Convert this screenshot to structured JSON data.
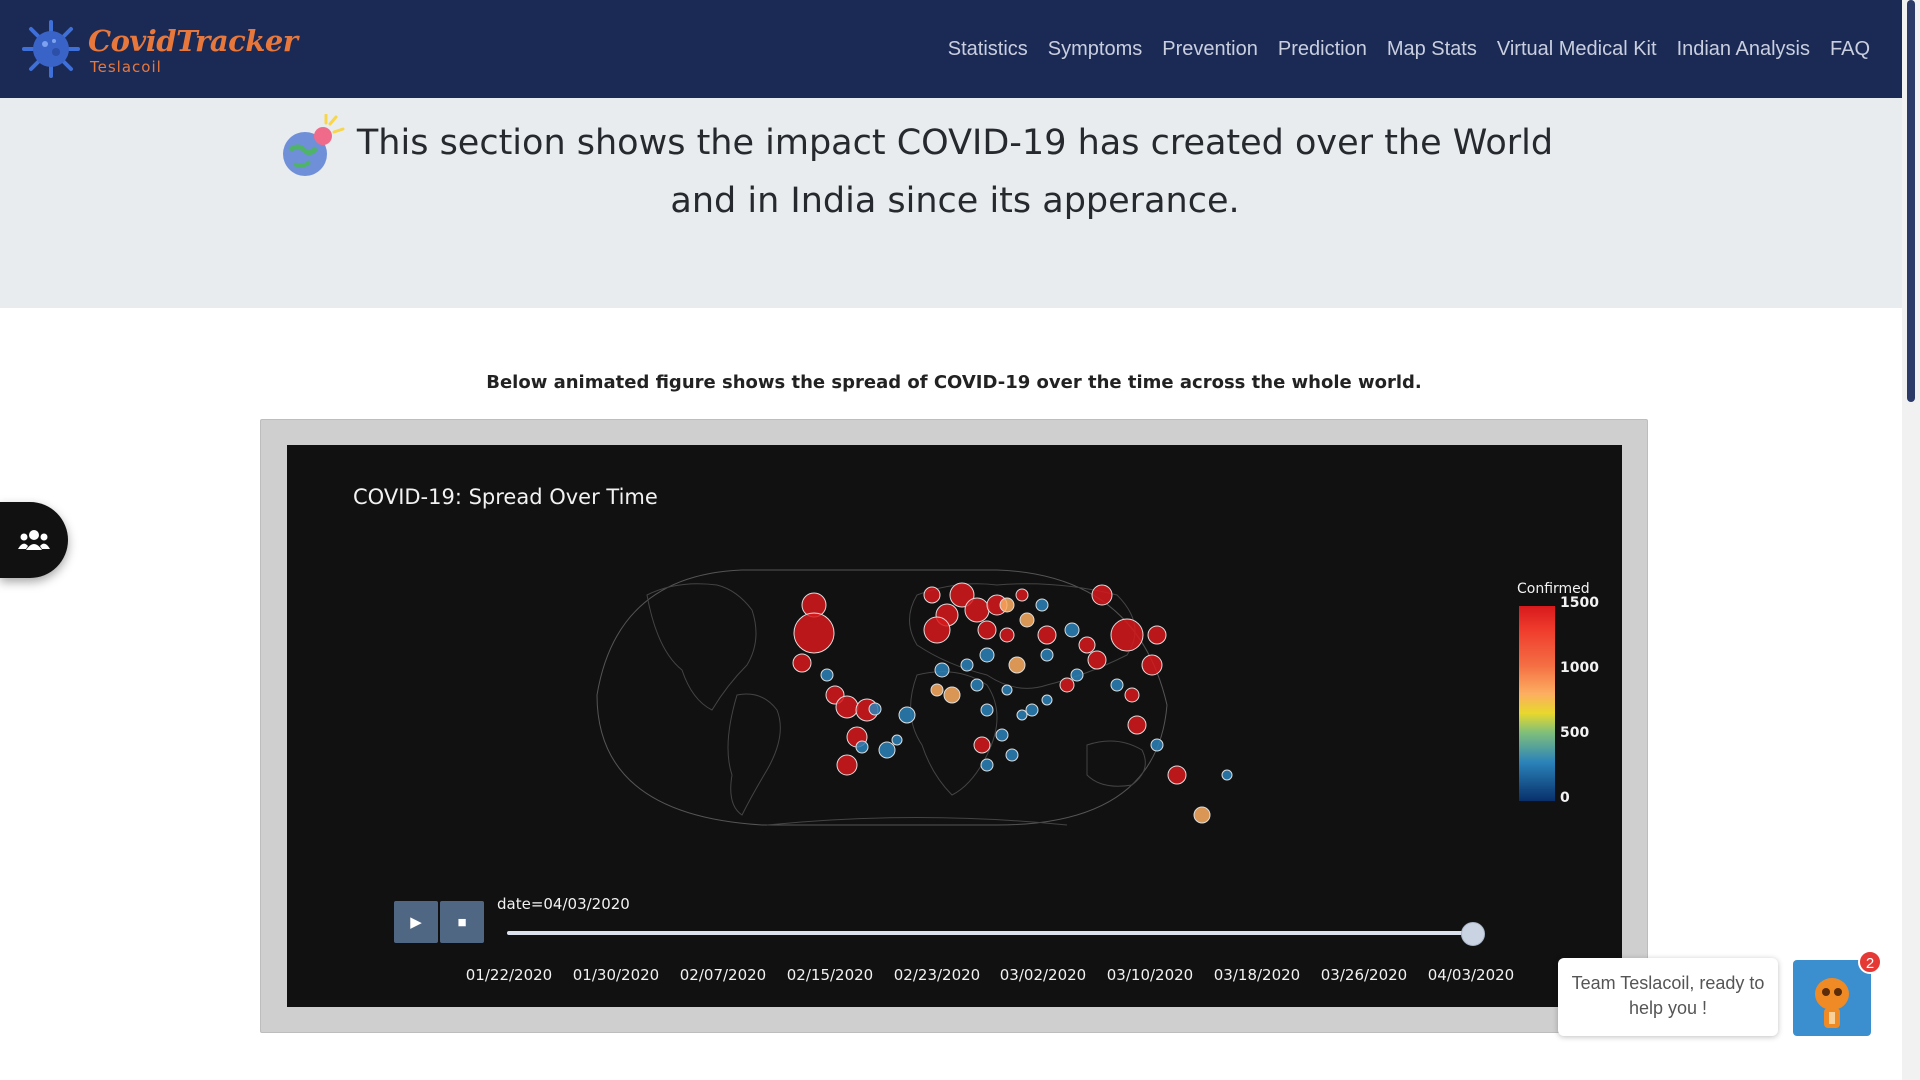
{
  "brand": {
    "title": "CovidTracker",
    "subtitle": "Teslacoil"
  },
  "nav": [
    "Statistics",
    "Symptoms",
    "Prevention",
    "Prediction",
    "Map Stats",
    "Virtual Medical Kit",
    "Indian Analysis",
    "FAQ"
  ],
  "hero": {
    "text": "This section shows the impact COVID-19 has created over the World and in India since its apperance."
  },
  "caption": "Below animated figure shows the spread of COVID-19 over the time across the whole world.",
  "chart_data": {
    "type": "scatter",
    "title": "COVID-19: Spread Over Time",
    "colorbar": {
      "title": "Confirmed",
      "ticks": [
        "1500",
        "1000",
        "500",
        "0"
      ],
      "range": [
        0,
        1500
      ]
    },
    "slider": {
      "current_label": "date=04/03/2020",
      "current_value": "04/03/2020",
      "ticks": [
        "01/22/2020",
        "01/30/2020",
        "02/07/2020",
        "02/15/2020",
        "02/23/2020",
        "03/02/2020",
        "03/10/2020",
        "03/18/2020",
        "03/26/2020",
        "04/03/2020"
      ]
    },
    "controls": {
      "play": "▶",
      "stop": "■"
    },
    "colors": {
      "high": "#d7191c",
      "mid": "#fdae61",
      "low": "#2b83ba"
    }
  },
  "chat": {
    "message": "Team Teslacoil, ready to help you !",
    "badge": "2"
  }
}
